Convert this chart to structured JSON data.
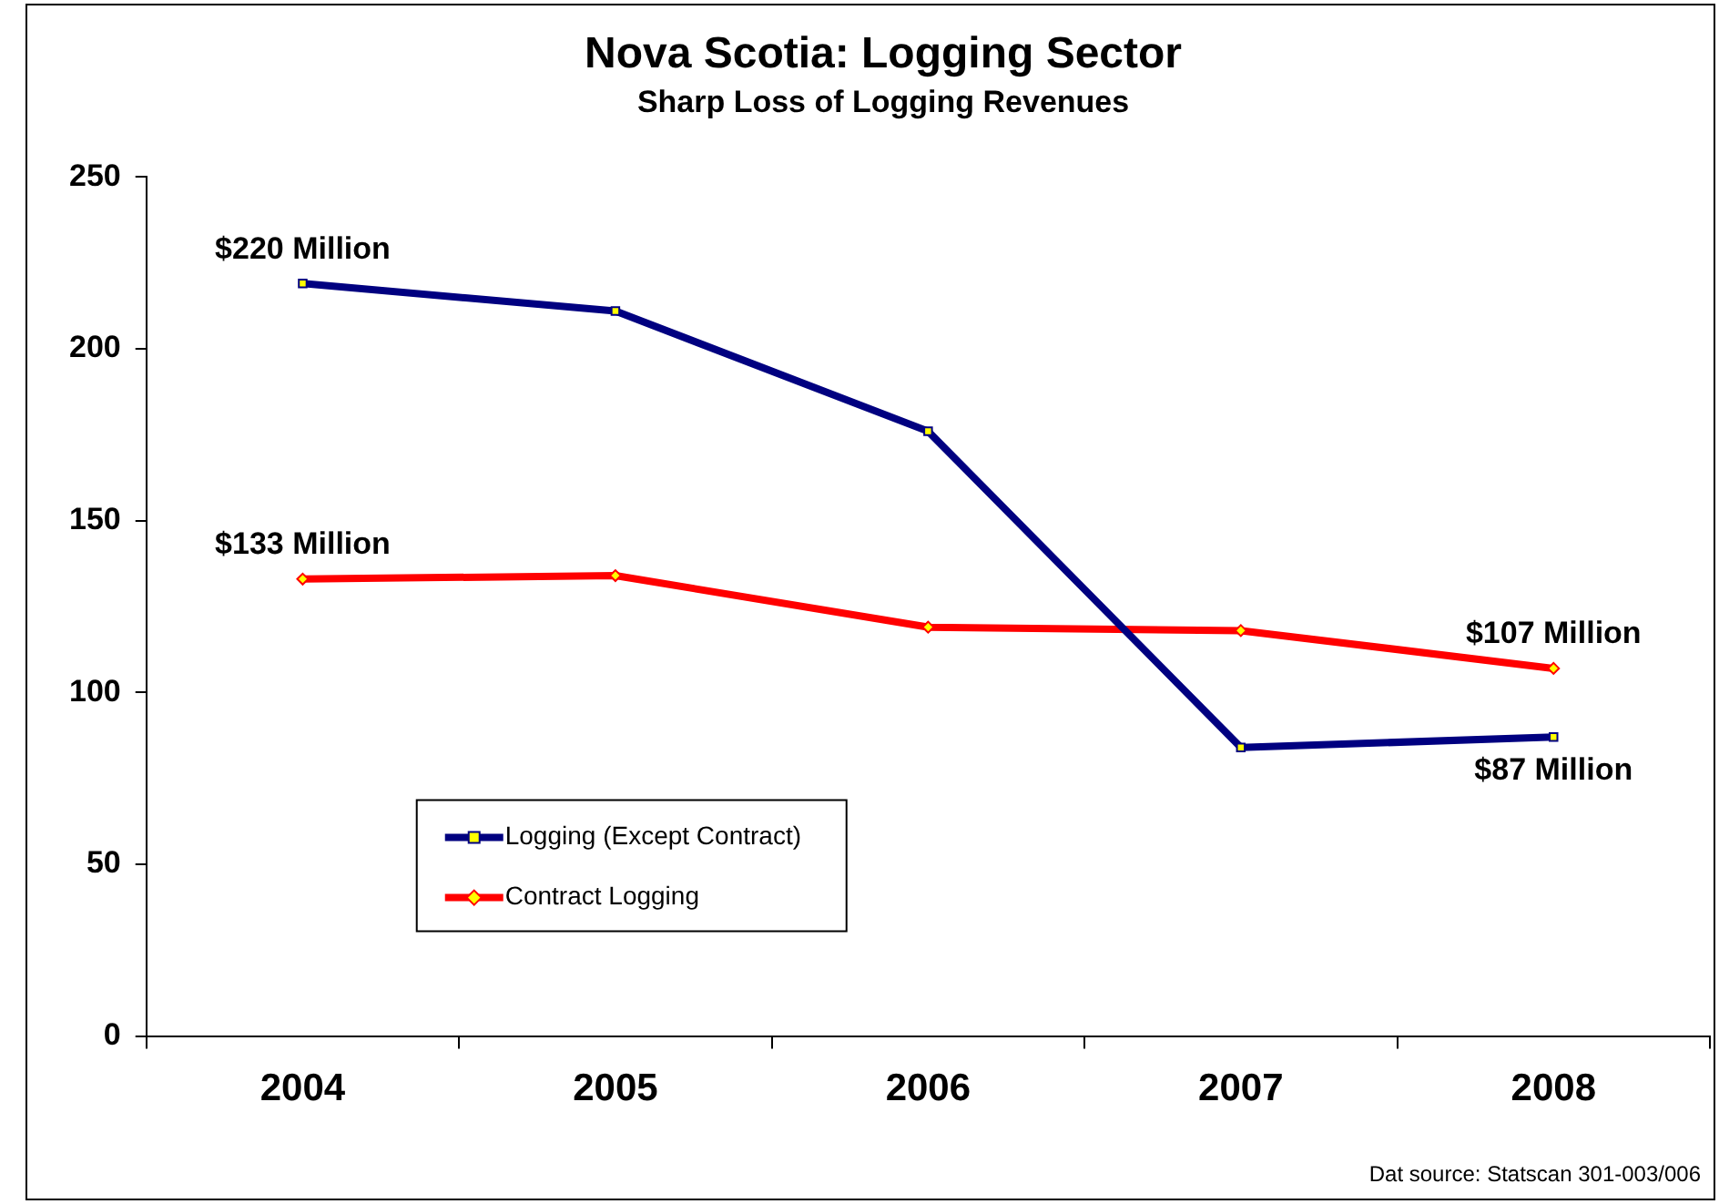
{
  "chart_data": {
    "type": "line",
    "title": "Nova Scotia: Logging Sector",
    "subtitle": "Sharp Loss of Logging Revenues",
    "categories": [
      "2004",
      "2005",
      "2006",
      "2007",
      "2008"
    ],
    "series": [
      {
        "name": "Logging (Except Contract)",
        "color": "#000080",
        "marker": "square",
        "values": [
          219,
          211,
          176,
          84,
          87
        ]
      },
      {
        "name": "Contract Logging",
        "color": "#ff0000",
        "marker": "diamond",
        "values": [
          133,
          134,
          119,
          118,
          107
        ]
      }
    ],
    "ylim": [
      0,
      250
    ],
    "yticks": [
      0,
      50,
      100,
      150,
      200,
      250
    ],
    "grid": false,
    "legend": "bottom left",
    "line_style": "solid",
    "annotations": [
      {
        "text": "$220 Million",
        "x": "2004",
        "y": 219
      },
      {
        "text": "$133 Million",
        "x": "2004",
        "y": 133
      },
      {
        "text": "$107 Million",
        "x": "2008",
        "y": 107
      },
      {
        "text": "$87 Million",
        "x": "2008",
        "y": 87
      },
      "Dat source: Statscan 301-003/006"
    ]
  }
}
